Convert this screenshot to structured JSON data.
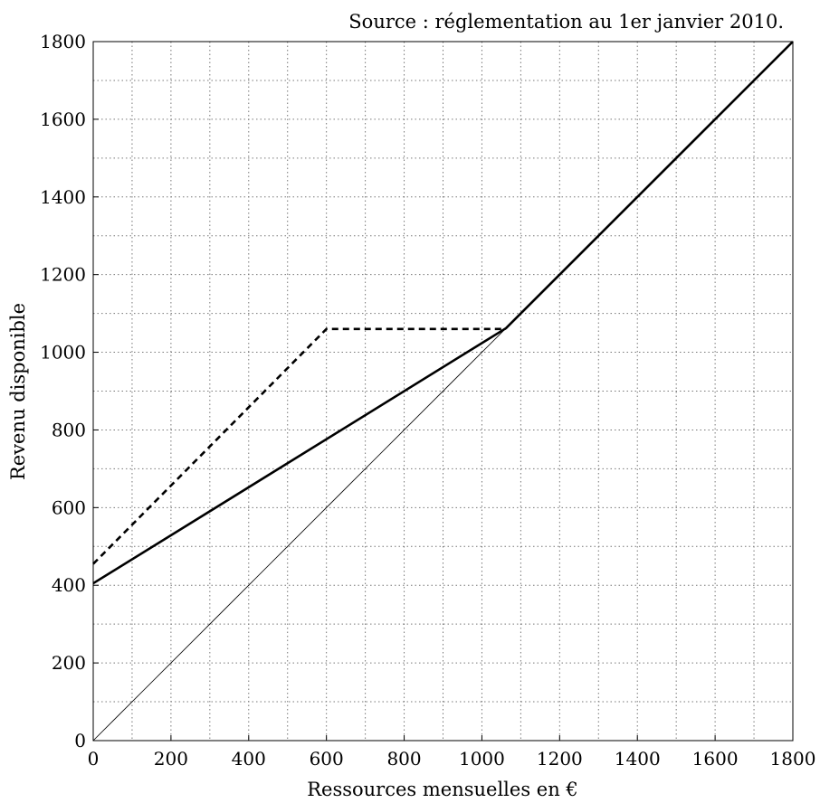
{
  "chart_data": {
    "type": "line",
    "title": "",
    "source": "Source : réglementation au 1er janvier 2010.",
    "xlabel": "Ressources mensuelles en €",
    "ylabel": "Revenu disponible",
    "xlim": [
      0,
      1800
    ],
    "ylim": [
      0,
      1800
    ],
    "x_ticks": [
      0,
      200,
      400,
      600,
      800,
      1000,
      1200,
      1400,
      1600,
      1800
    ],
    "y_ticks": [
      0,
      200,
      400,
      600,
      800,
      1000,
      1200,
      1400,
      1600,
      1800
    ],
    "grid": true,
    "grid_minor_step": 100,
    "series": [
      {
        "style": "solid-thick",
        "x": [
          0,
          1062,
          1800
        ],
        "y": [
          405,
          1062,
          1800
        ]
      },
      {
        "style": "dashed-thick",
        "x": [
          0,
          600,
          1062
        ],
        "y": [
          455,
          1060,
          1060
        ]
      },
      {
        "style": "solid-thin",
        "x": [
          0,
          1062
        ],
        "y": [
          0,
          1062
        ]
      }
    ]
  }
}
